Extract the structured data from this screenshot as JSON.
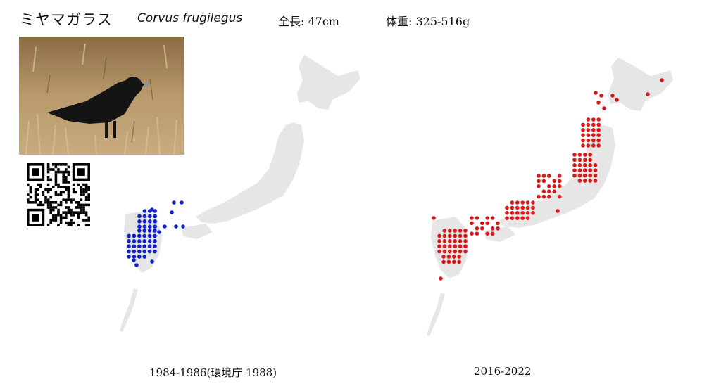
{
  "species": {
    "japanese_name": "ミヤマガラス",
    "scientific_name": "Corvus frugilegus",
    "length": "全長: 47cm",
    "weight": "体重: 325-516g"
  },
  "maps": {
    "left": {
      "caption": "1984-1986(環境庁 1988)",
      "dot_color": "#1020c8"
    },
    "right": {
      "caption": "2016-2022",
      "dot_color": "#d81818"
    }
  },
  "colors": {
    "land": "#e6e6e6",
    "background": "#ffffff"
  },
  "icons": {
    "photo": "rook-photo",
    "qr": "qr-code"
  }
}
